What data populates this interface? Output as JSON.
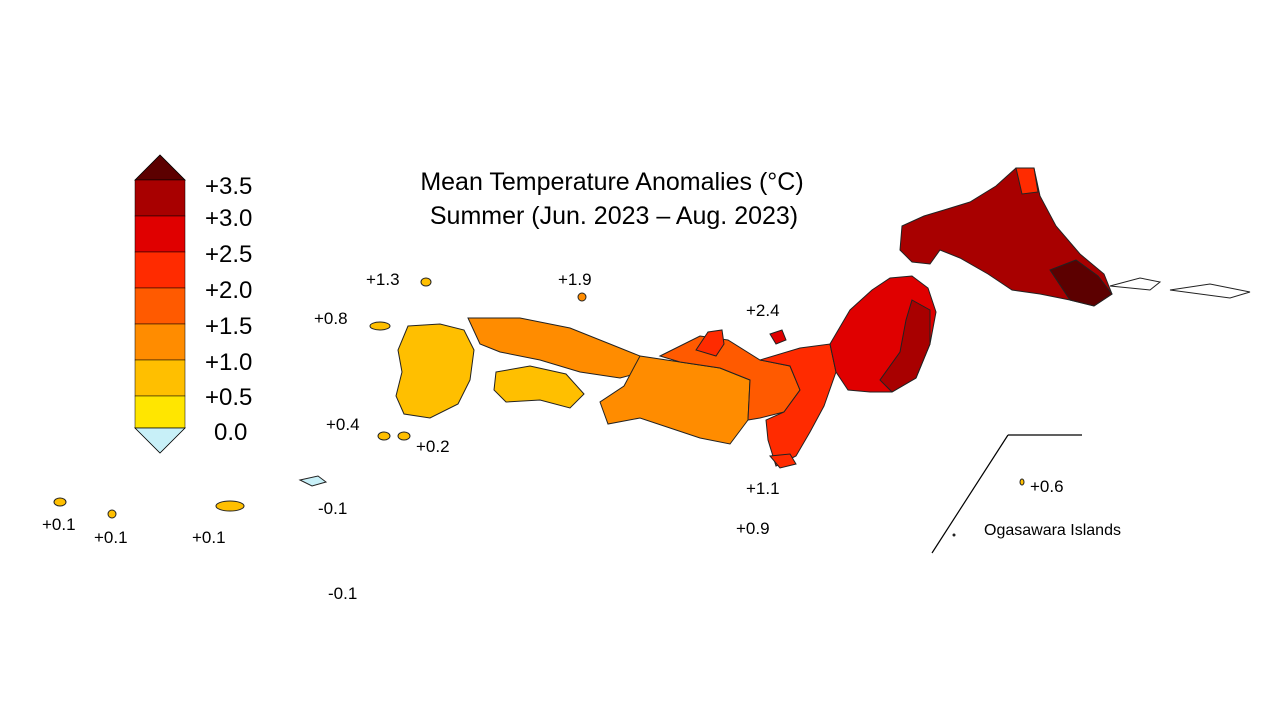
{
  "title": {
    "line1": "Mean Temperature Anomalies (°C)",
    "line2": "Summer (Jun. 2023 – Aug. 2023)"
  },
  "legend": {
    "levels": [
      {
        "label": "+3.5",
        "color": "#5c0000"
      },
      {
        "label": "+3.0",
        "color": "#a80000"
      },
      {
        "label": "+2.5",
        "color": "#e00000"
      },
      {
        "label": "+2.0",
        "color": "#ff2b00"
      },
      {
        "label": "+1.5",
        "color": "#ff5a00"
      },
      {
        "label": "+1.0",
        "color": "#ff8c00"
      },
      {
        "label": "+0.5",
        "color": "#ffbf00"
      },
      {
        "label": "0.0",
        "color": "#ffe600"
      }
    ],
    "below_zero_color": "#c8f0f8"
  },
  "annotations": {
    "hokkaido_channel": "+2.4",
    "oki": "+1.9",
    "tsushima": "+1.3",
    "goto": "+0.8",
    "koshiki": "+0.4",
    "tanegashima": "+0.2",
    "izu_north": "+1.1",
    "izu_south": "+0.9",
    "ogasawara": "+0.6",
    "ogasawara_label": "Ogasawara Islands",
    "yaeyama": "+0.1",
    "miyako": "+0.1",
    "amami": "+0.1",
    "okinawa": "-0.1",
    "daito": "-0.1"
  },
  "colors": {
    "region_hokkaido": "#a80000",
    "region_hokkaido_east": "#5c0000",
    "region_tohoku": "#e00000",
    "region_kanto": "#ff2b00",
    "region_chubu_west": "#ff5a00",
    "region_kinki": "#ff8c00",
    "region_chugoku": "#ff8c00",
    "region_shikoku": "#ffbf00",
    "region_kyushu": "#ffbf00",
    "okinawa": "#c8f0f8"
  }
}
